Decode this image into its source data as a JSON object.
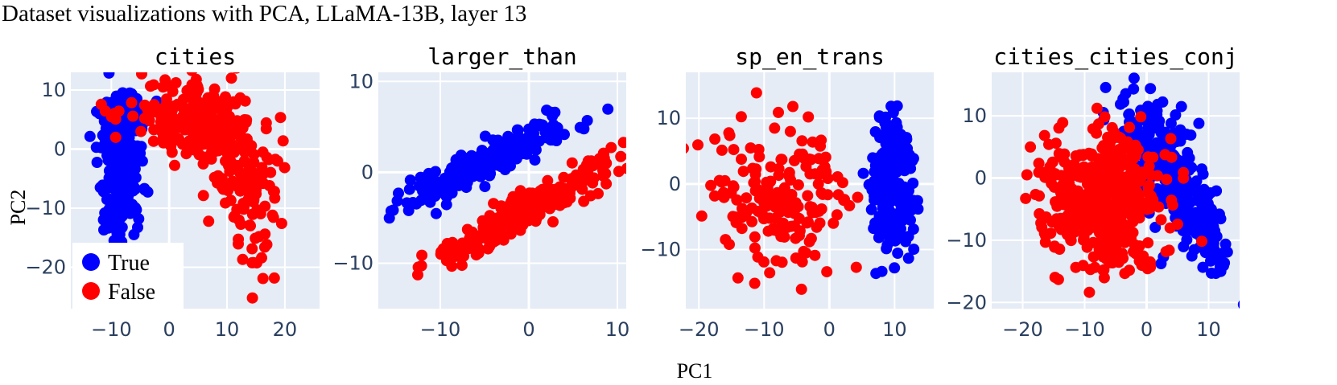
{
  "figure": {
    "title": "Dataset visualizations with PCA, LLaMA-13B, layer 13",
    "xlabel": "PC1",
    "ylabel": "PC2",
    "legend": {
      "placement": "bottom-left",
      "entries": [
        "True",
        "False"
      ]
    }
  },
  "colors": {
    "true": "#0000ff",
    "false": "#ff0000",
    "plot_bg": "#e5ecf6",
    "grid": "#ffffff",
    "tick": "#2a3f5f"
  },
  "chart_data": [
    {
      "type": "scatter",
      "title": "cities",
      "xlim": [
        -17,
        26
      ],
      "ylim": [
        -27,
        13
      ],
      "xticks": [
        -10,
        0,
        10,
        20
      ],
      "yticks": [
        -20,
        -10,
        0,
        10
      ],
      "grid": true,
      "series": [
        {
          "name": "True",
          "color": "#0000ff",
          "clusters": [
            {
              "cx": -8.5,
              "cy": -2,
              "sx": 1.6,
              "sy": 5.5,
              "rot": 0.15,
              "n": 220,
              "seed": 11
            },
            {
              "cx": -6,
              "cy": 6,
              "sx": 1.8,
              "sy": 1.8,
              "rot": 0,
              "n": 50,
              "seed": 12
            },
            {
              "cx": -9.5,
              "cy": -12,
              "sx": 1.0,
              "sy": 2.5,
              "rot": 0,
              "n": 25,
              "seed": 13
            }
          ]
        },
        {
          "name": "False",
          "color": "#ff0000",
          "clusters": [
            {
              "cx": 5,
              "cy": 4.5,
              "sx": 5.5,
              "sy": 3.2,
              "rot": -0.25,
              "n": 260,
              "seed": 21
            },
            {
              "cx": 13,
              "cy": -5,
              "sx": 2.5,
              "sy": 3.5,
              "rot": -0.5,
              "n": 80,
              "seed": 22
            },
            {
              "cx": 16,
              "cy": -15,
              "sx": 1.5,
              "sy": 4,
              "rot": 0,
              "n": 30,
              "seed": 23
            }
          ]
        }
      ]
    },
    {
      "type": "scatter",
      "title": "larger_than",
      "xlim": [
        -17,
        11
      ],
      "ylim": [
        -15,
        11
      ],
      "xticks": [
        -10,
        0,
        10
      ],
      "yticks": [
        -10,
        0,
        10
      ],
      "grid": true,
      "series": [
        {
          "name": "True",
          "color": "#0000ff",
          "clusters": [
            {
              "cx": -5,
              "cy": 1,
              "sx": 5.5,
              "sy": 0.9,
              "rot": 0.45,
              "n": 260,
              "seed": 31
            }
          ]
        },
        {
          "name": "False",
          "color": "#ff0000",
          "clusters": [
            {
              "cx": 0,
              "cy": -4,
              "sx": 6,
              "sy": 0.9,
              "rot": 0.5,
              "n": 290,
              "seed": 41
            }
          ]
        }
      ]
    },
    {
      "type": "scatter",
      "title": "sp_en_trans",
      "xlim": [
        -22,
        16
      ],
      "ylim": [
        -19,
        17
      ],
      "xticks": [
        -20,
        -10,
        0,
        10
      ],
      "yticks": [
        -10,
        0,
        10
      ],
      "grid": true,
      "series": [
        {
          "name": "True",
          "color": "#0000ff",
          "clusters": [
            {
              "cx": 9.5,
              "cy": 0,
              "sx": 1.7,
              "sy": 5.5,
              "rot": 0,
              "n": 210,
              "seed": 51
            }
          ]
        },
        {
          "name": "False",
          "color": "#ff0000",
          "clusters": [
            {
              "cx": -8,
              "cy": -1,
              "sx": 5.5,
              "sy": 6,
              "rot": 0,
              "n": 180,
              "seed": 61
            }
          ]
        }
      ]
    },
    {
      "type": "scatter",
      "title": "cities_cities_conj",
      "xlim": [
        -25,
        15
      ],
      "ylim": [
        -21,
        17
      ],
      "xticks": [
        -20,
        -10,
        0,
        10
      ],
      "yticks": [
        -20,
        -10,
        0,
        10
      ],
      "grid": true,
      "series": [
        {
          "name": "True",
          "color": "#0000ff",
          "clusters": [
            {
              "cx": 3,
              "cy": 2,
              "sx": 2.8,
              "sy": 6.5,
              "rot": 0.4,
              "n": 280,
              "seed": 71
            },
            {
              "cx": 10,
              "cy": -10,
              "sx": 1.6,
              "sy": 3.5,
              "rot": 0.3,
              "n": 70,
              "seed": 72
            }
          ]
        },
        {
          "name": "False",
          "color": "#ff0000",
          "clusters": [
            {
              "cx": -7,
              "cy": -2,
              "sx": 5,
              "sy": 5,
              "rot": 0,
              "n": 420,
              "seed": 81
            },
            {
              "cx": -4,
              "cy": -12,
              "sx": 3,
              "sy": 2,
              "rot": 0,
              "n": 40,
              "seed": 82
            }
          ]
        }
      ]
    }
  ]
}
